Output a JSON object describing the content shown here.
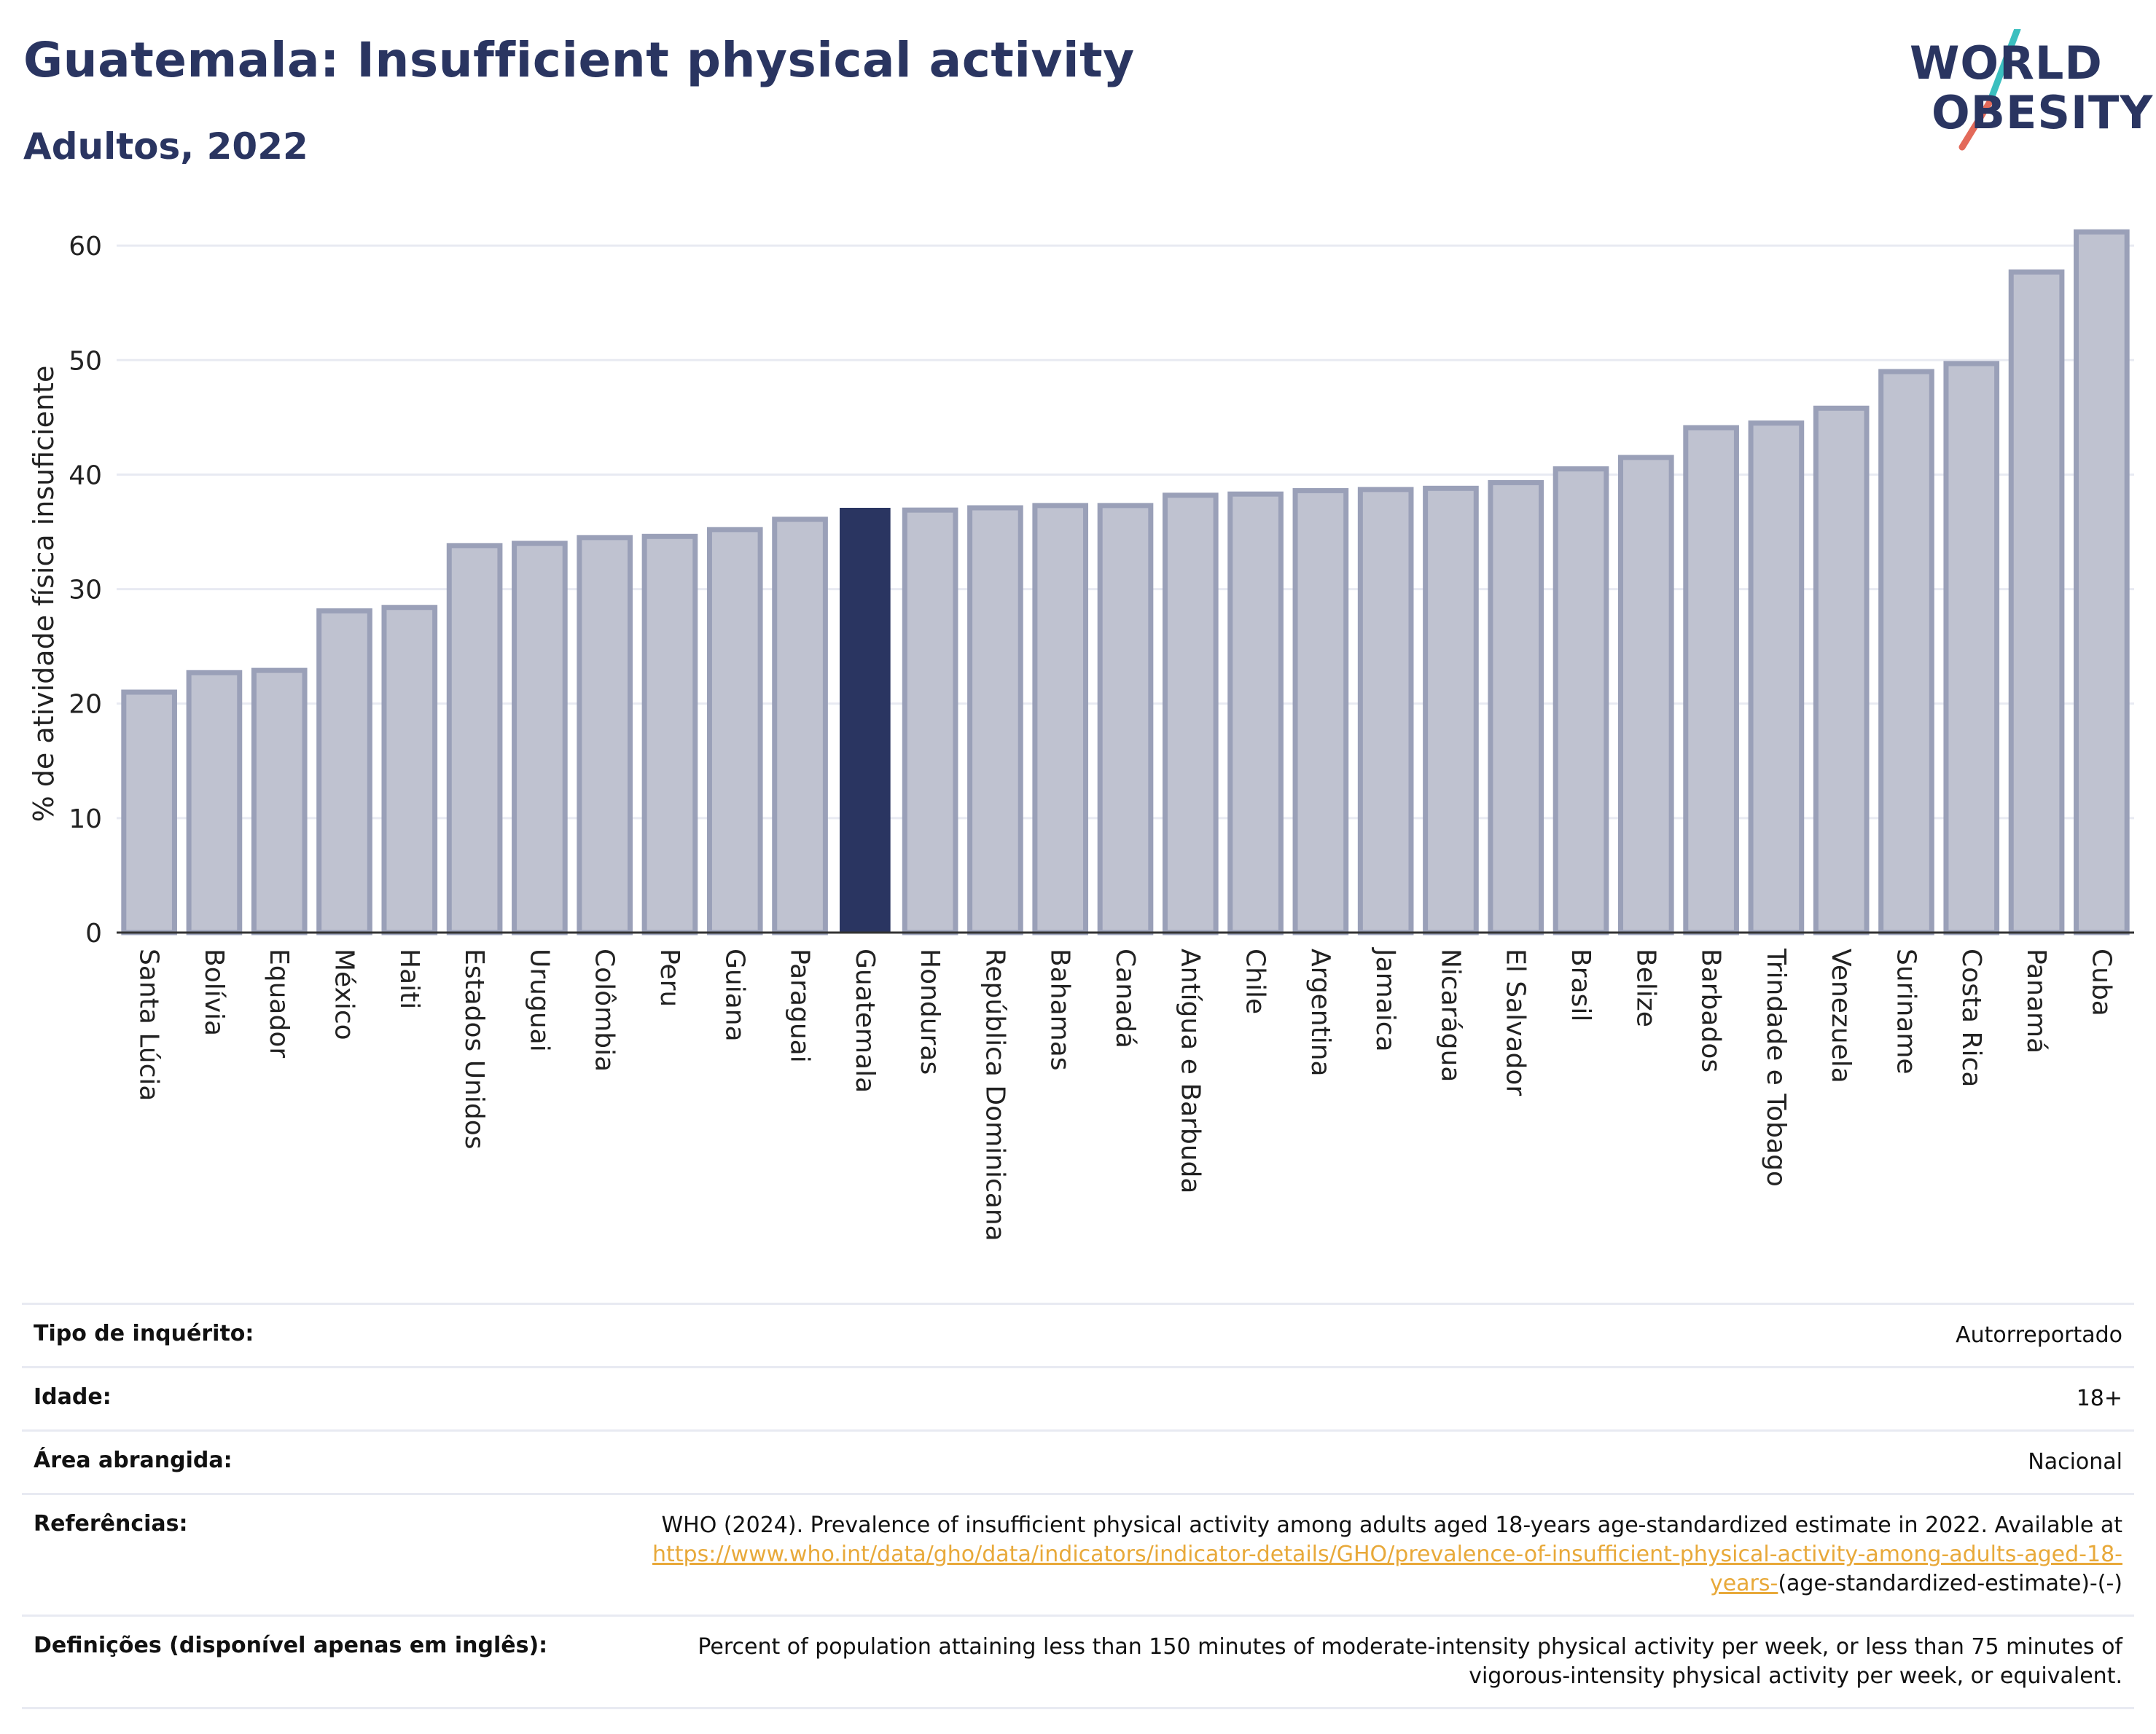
{
  "header": {
    "title": "Guatemala: Insufficient physical activity",
    "subtitle": "Adultos, 2022"
  },
  "logo": {
    "line1": "WORLD",
    "line2": "OBESITY",
    "slash_colors": [
      "#3bbfbf",
      "#e36a5a"
    ]
  },
  "colors": {
    "highlight_bar": "#2a3561",
    "default_bar_fill": "#bfc2d0",
    "default_bar_stroke": "#9aa0b8",
    "grid": "#e8eaf2",
    "text": "#222222",
    "link": "#e8a93a"
  },
  "chart_data": {
    "type": "bar",
    "title": "Guatemala: Insufficient physical activity",
    "subtitle": "Adultos, 2022",
    "xlabel": "",
    "ylabel": "% de atividade física insuficiente",
    "ylim": [
      0,
      63
    ],
    "yticks": [
      0,
      10,
      20,
      30,
      40,
      50,
      60
    ],
    "grid": true,
    "highlight": "Guatemala",
    "categories": [
      "Santa Lúcia",
      "Bolívia",
      "Equador",
      "México",
      "Haiti",
      "Estados Unidos",
      "Uruguai",
      "Colômbia",
      "Peru",
      "Guiana",
      "Paraguai",
      "Guatemala",
      "Honduras",
      "República Dominicana",
      "Bahamas",
      "Canadá",
      "Antígua e Barbuda",
      "Chile",
      "Argentina",
      "Jamaica",
      "Nicarágua",
      "El Salvador",
      "Brasil",
      "Belize",
      "Barbados",
      "Trindade e Tobago",
      "Venezuela",
      "Suriname",
      "Costa Rica",
      "Panamá",
      "Cuba"
    ],
    "values": [
      21.0,
      22.7,
      22.9,
      28.1,
      28.4,
      33.8,
      34.0,
      34.5,
      34.6,
      35.2,
      36.1,
      37.1,
      36.9,
      37.1,
      37.3,
      37.3,
      38.2,
      38.3,
      38.6,
      38.7,
      38.8,
      39.3,
      40.5,
      41.5,
      44.1,
      44.5,
      45.8,
      49.0,
      49.7,
      57.7,
      61.2
    ]
  },
  "info": {
    "rows": [
      {
        "key": "Tipo de inquérito:",
        "value": "Autorreportado"
      },
      {
        "key": "Idade:",
        "value": "18+"
      },
      {
        "key": "Área abrangida:",
        "value": "Nacional"
      }
    ],
    "references": {
      "key": "Referências:",
      "text": "WHO (2024). Prevalence of insufficient physical activity among adults aged 18-years age-standardized estimate in 2022. Available at",
      "link": "https://www.who.int/data/gho/data/indicators/indicator-details/GHO/prevalence-of-insufficient-physical-activity-among-adults-aged-18-years-",
      "suffix": "(age-standardized-estimate)-(-)"
    },
    "definitions": {
      "key": "Definições (disponível apenas em inglês):",
      "value": "Percent of population attaining less than 150 minutes of moderate-intensity physical activity per week, or less than 75 minutes of vigorous-intensity physical activity per week, or equivalent."
    }
  }
}
